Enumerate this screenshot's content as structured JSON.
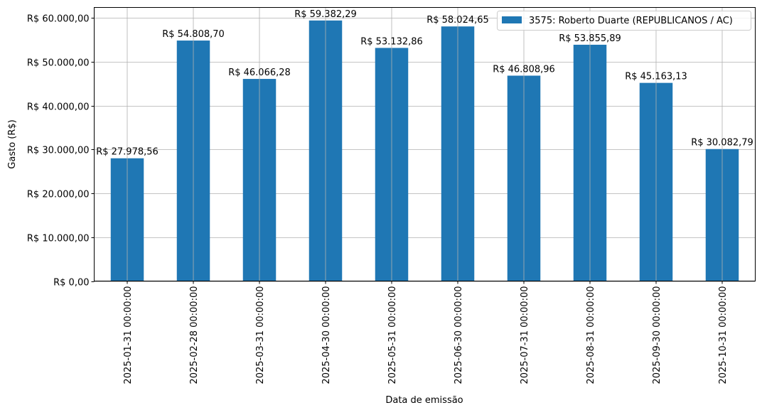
{
  "chart_data": {
    "type": "bar",
    "title": "",
    "xlabel": "Data de emissão",
    "ylabel": "Gasto (R$)",
    "categories": [
      "2025-01-31 00:00:00",
      "2025-02-28 00:00:00",
      "2025-03-31 00:00:00",
      "2025-04-30 00:00:00",
      "2025-05-31 00:00:00",
      "2025-06-30 00:00:00",
      "2025-07-31 00:00:00",
      "2025-08-31 00:00:00",
      "2025-09-30 00:00:00",
      "2025-10-31 00:00:00"
    ],
    "series": [
      {
        "name": "3575: Roberto Duarte (REPUBLICANOS / AC)",
        "color": "#1f77b4",
        "values": [
          27978.56,
          54808.7,
          46066.28,
          59382.29,
          53132.86,
          58024.65,
          46808.96,
          53855.89,
          45163.13,
          30082.79
        ],
        "labels": [
          "R$ 27.978,56",
          "R$ 54.808,70",
          "R$ 46.066,28",
          "R$ 59.382,29",
          "R$ 53.132,86",
          "R$ 58.024,65",
          "R$ 46.808,96",
          "R$ 53.855,89",
          "R$ 45.163,13",
          "R$ 30.082,79"
        ]
      }
    ],
    "yticks": [
      0,
      10000,
      20000,
      30000,
      40000,
      50000,
      60000
    ],
    "ytick_labels": [
      "R$ 0,00",
      "R$ 10.000,00",
      "R$ 20.000,00",
      "R$ 30.000,00",
      "R$ 40.000,00",
      "R$ 50.000,00",
      "R$ 60.000,00"
    ],
    "ylim": [
      0,
      62351
    ],
    "grid": true,
    "legend_position": "top-right"
  }
}
